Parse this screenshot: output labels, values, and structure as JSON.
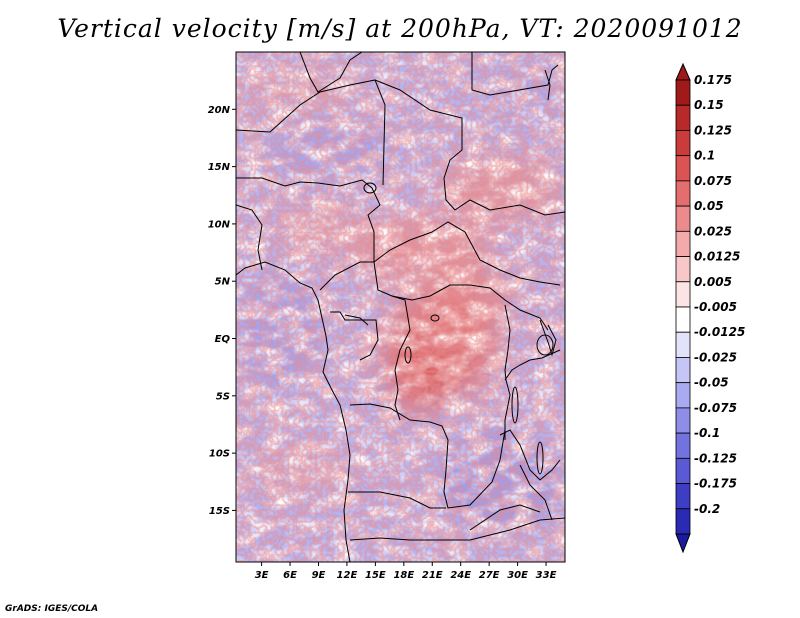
{
  "title": "Vertical velocity [m/s] at 200hPa, VT: 2020091012",
  "credit": "GrADS: IGES/COLA",
  "map": {
    "lat_labels": [
      {
        "text": "20N",
        "lat": 20
      },
      {
        "text": "15N",
        "lat": 15
      },
      {
        "text": "10N",
        "lat": 10
      },
      {
        "text": "5N",
        "lat": 5
      },
      {
        "text": "EQ",
        "lat": 0
      },
      {
        "text": "5S",
        "lat": -5
      },
      {
        "text": "10S",
        "lat": -10
      },
      {
        "text": "15S",
        "lat": -15
      }
    ],
    "lon_labels": [
      {
        "text": "3E",
        "lon": 3
      },
      {
        "text": "6E",
        "lon": 6
      },
      {
        "text": "9E",
        "lon": 9
      },
      {
        "text": "12E",
        "lon": 12
      },
      {
        "text": "15E",
        "lon": 15
      },
      {
        "text": "18E",
        "lon": 18
      },
      {
        "text": "21E",
        "lon": 21
      },
      {
        "text": "24E",
        "lon": 24
      },
      {
        "text": "27E",
        "lon": 27
      },
      {
        "text": "30E",
        "lon": 30
      },
      {
        "text": "33E",
        "lon": 33
      }
    ],
    "lat_range": [
      -19.5,
      25
    ],
    "lon_range": [
      0.3,
      35
    ]
  },
  "legend": {
    "levels": [
      {
        "label": "0.175",
        "color": "#a11a1a"
      },
      {
        "label": "0.15",
        "color": "#b82a2a"
      },
      {
        "label": "0.125",
        "color": "#cc3b3b"
      },
      {
        "label": "0.1",
        "color": "#db5353"
      },
      {
        "label": "0.075",
        "color": "#e46d6d"
      },
      {
        "label": "0.05",
        "color": "#ec8b8b"
      },
      {
        "label": "0.025",
        "color": "#f3aaaa"
      },
      {
        "label": "0.0125",
        "color": "#f8c8c8"
      },
      {
        "label": "0.005",
        "color": "#fce4e4"
      },
      {
        "label": "-0.005",
        "color": "#ffffff"
      },
      {
        "label": "-0.0125",
        "color": "#e2e2fb"
      },
      {
        "label": "-0.025",
        "color": "#c6c6f6"
      },
      {
        "label": "-0.05",
        "color": "#aaaaf0"
      },
      {
        "label": "-0.075",
        "color": "#8e8ee9"
      },
      {
        "label": "-0.1",
        "color": "#7373e0"
      },
      {
        "label": "-0.125",
        "color": "#5a5ad4"
      },
      {
        "label": "-0.175",
        "color": "#3e3ec4"
      },
      {
        "label": "-0.2",
        "color": "#2a2ab4"
      }
    ],
    "top_cap_color": "#a11a1a",
    "bottom_cap_color": "#1a1a9e"
  },
  "field_colors": {
    "strong_positive": "#d94a4a",
    "positive": "#f0a3a3",
    "neutral": "#ffffff",
    "negative": "#a9a9ef",
    "strong_negative": "#6262d8",
    "background": "#b4b4f2",
    "boundaries": "#000000"
  }
}
